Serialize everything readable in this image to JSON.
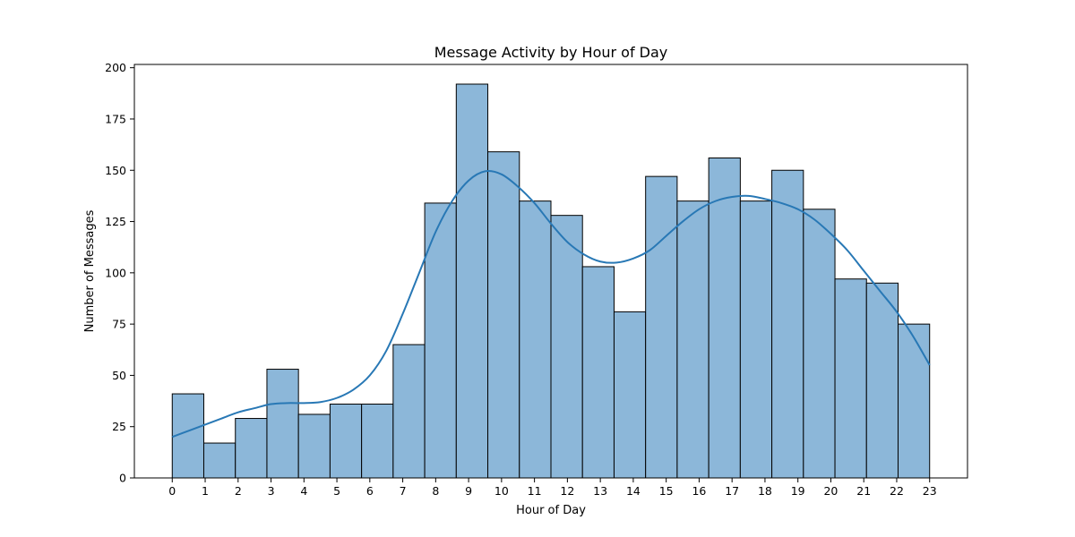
{
  "chart_data": {
    "type": "bar",
    "title": "Message Activity by Hour of Day",
    "xlabel": "Hour of Day",
    "ylabel": "Number of Messages",
    "bins": [
      {
        "start": 0.0,
        "end": 0.958,
        "value": 41
      },
      {
        "start": 0.958,
        "end": 1.917,
        "value": 17
      },
      {
        "start": 1.917,
        "end": 2.875,
        "value": 29
      },
      {
        "start": 2.875,
        "end": 3.833,
        "value": 53
      },
      {
        "start": 3.833,
        "end": 4.792,
        "value": 31
      },
      {
        "start": 4.792,
        "end": 5.75,
        "value": 36
      },
      {
        "start": 5.75,
        "end": 6.708,
        "value": 36
      },
      {
        "start": 6.708,
        "end": 7.667,
        "value": 65
      },
      {
        "start": 7.667,
        "end": 8.625,
        "value": 134
      },
      {
        "start": 8.625,
        "end": 9.583,
        "value": 192
      },
      {
        "start": 9.583,
        "end": 10.542,
        "value": 159
      },
      {
        "start": 10.542,
        "end": 11.5,
        "value": 135
      },
      {
        "start": 11.5,
        "end": 12.458,
        "value": 128
      },
      {
        "start": 12.458,
        "end": 13.417,
        "value": 103
      },
      {
        "start": 13.417,
        "end": 14.375,
        "value": 81
      },
      {
        "start": 14.375,
        "end": 15.333,
        "value": 147
      },
      {
        "start": 15.333,
        "end": 16.292,
        "value": 135
      },
      {
        "start": 16.292,
        "end": 17.25,
        "value": 156
      },
      {
        "start": 17.25,
        "end": 18.208,
        "value": 135
      },
      {
        "start": 18.208,
        "end": 19.167,
        "value": 150
      },
      {
        "start": 19.167,
        "end": 20.125,
        "value": 131
      },
      {
        "start": 20.125,
        "end": 21.083,
        "value": 97
      },
      {
        "start": 21.083,
        "end": 22.042,
        "value": 95
      },
      {
        "start": 22.042,
        "end": 23.0,
        "value": 75
      }
    ],
    "kde": {
      "x": [
        0,
        0.5,
        1,
        1.5,
        2,
        2.5,
        3,
        3.5,
        4,
        4.5,
        5,
        5.5,
        6,
        6.5,
        7,
        7.5,
        8,
        8.5,
        9,
        9.5,
        10,
        10.5,
        11,
        11.5,
        12,
        12.5,
        13,
        13.5,
        14,
        14.5,
        15,
        15.5,
        16,
        16.5,
        17,
        17.5,
        18,
        18.5,
        19,
        19.5,
        20,
        20.5,
        21,
        21.5,
        22,
        22.5,
        23
      ],
      "y": [
        20,
        23,
        26,
        29,
        32,
        34,
        36,
        36.5,
        36.5,
        37,
        39,
        43,
        50,
        62,
        80,
        100,
        120,
        135,
        145,
        149.5,
        148,
        142,
        134,
        124,
        115,
        109,
        105.5,
        105,
        107,
        111,
        118,
        125,
        131,
        135,
        137,
        137.5,
        136,
        134,
        131,
        126,
        119,
        111,
        101,
        91,
        81,
        69,
        55
      ]
    },
    "color": "#8cb7d9",
    "line_color": "#2878b5",
    "xticks": [
      "0",
      "1",
      "2",
      "3",
      "4",
      "5",
      "6",
      "7",
      "8",
      "9",
      "10",
      "11",
      "12",
      "13",
      "14",
      "15",
      "16",
      "17",
      "18",
      "19",
      "20",
      "21",
      "22",
      "23"
    ],
    "yticks": [
      "0",
      "25",
      "50",
      "75",
      "100",
      "125",
      "150",
      "175",
      "200"
    ],
    "xlim": [
      -1.15,
      24.15
    ],
    "ylim": [
      0,
      201.6
    ],
    "grid": false
  }
}
